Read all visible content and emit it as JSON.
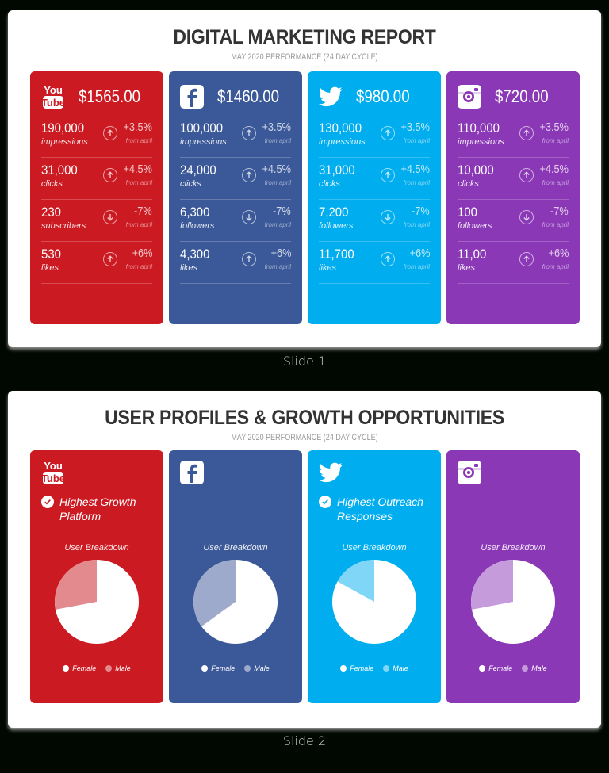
{
  "slide1": {
    "title": "DIGITAL MARKETING REPORT",
    "subtitle": "MAY 2020 PERFORMANCE (24 DAY CYCLE)",
    "caption": "Slide 1",
    "cards": [
      {
        "platform": "YouTube",
        "icon": "youtube-icon",
        "color": "#cc1a22",
        "amount": "$1565.00",
        "rows": [
          {
            "value": "190,000",
            "label": "impressions",
            "trend": "up",
            "change": "+3.5%",
            "note": "from april"
          },
          {
            "value": "31,000",
            "label": "clicks",
            "trend": "up",
            "change": "+4.5%",
            "note": "from april"
          },
          {
            "value": "230",
            "label": "subscribers",
            "trend": "down",
            "change": "-7%",
            "note": "from april"
          },
          {
            "value": "530",
            "label": "likes",
            "trend": "up",
            "change": "+6%",
            "note": "from april"
          }
        ]
      },
      {
        "platform": "Facebook",
        "icon": "facebook-icon",
        "color": "#3b5998",
        "amount": "$1460.00",
        "rows": [
          {
            "value": "100,000",
            "label": "impressions",
            "trend": "up",
            "change": "+3.5%",
            "note": "from april"
          },
          {
            "value": "24,000",
            "label": "clicks",
            "trend": "up",
            "change": "+4.5%",
            "note": "from april"
          },
          {
            "value": "6,300",
            "label": "followers",
            "trend": "down",
            "change": "-7%",
            "note": "from april"
          },
          {
            "value": "4,300",
            "label": "likes",
            "trend": "up",
            "change": "+6%",
            "note": "from april"
          }
        ]
      },
      {
        "platform": "Twitter",
        "icon": "twitter-icon",
        "color": "#00adee",
        "amount": "$980.00",
        "rows": [
          {
            "value": "130,000",
            "label": "impressions",
            "trend": "up",
            "change": "+3.5%",
            "note": "from april"
          },
          {
            "value": "31,000",
            "label": "clicks",
            "trend": "up",
            "change": "+4.5%",
            "note": "from april"
          },
          {
            "value": "7,200",
            "label": "followers",
            "trend": "down",
            "change": "-7%",
            "note": "from april"
          },
          {
            "value": "11,700",
            "label": "likes",
            "trend": "up",
            "change": "+6%",
            "note": "from april"
          }
        ]
      },
      {
        "platform": "Instagram",
        "icon": "instagram-icon",
        "color": "#8a38b6",
        "amount": "$720.00",
        "rows": [
          {
            "value": "110,000",
            "label": "impressions",
            "trend": "up",
            "change": "+3.5%",
            "note": "from april"
          },
          {
            "value": "10,000",
            "label": "clicks",
            "trend": "up",
            "change": "+4.5%",
            "note": "from april"
          },
          {
            "value": "100",
            "label": "followers",
            "trend": "down",
            "change": "-7%",
            "note": "from april"
          },
          {
            "value": "11,00",
            "label": "likes",
            "trend": "up",
            "change": "+6%",
            "note": "from april"
          }
        ]
      }
    ]
  },
  "slide2": {
    "title": "USER PROFILES & GROWTH OPPORTUNITIES",
    "subtitle": "MAY 2020 PERFORMANCE (24 DAY CYCLE)",
    "caption": "Slide 2",
    "breakdown_label": "User Breakdown",
    "legend": {
      "female": "Female",
      "male": "Male"
    },
    "cards": [
      {
        "platform": "YouTube",
        "icon": "youtube-icon",
        "color": "#cc1a22",
        "male_color": "#e38a8e",
        "badge": "Highest Growth Platform"
      },
      {
        "platform": "Facebook",
        "icon": "facebook-icon",
        "color": "#3b5998",
        "male_color": "#9eaacb",
        "badge": null
      },
      {
        "platform": "Twitter",
        "icon": "twitter-icon",
        "color": "#00adee",
        "male_color": "#80d6f7",
        "badge": "Highest Outreach Responses"
      },
      {
        "platform": "Instagram",
        "icon": "instagram-icon",
        "color": "#8a38b6",
        "male_color": "#c59bdc",
        "badge": null
      }
    ]
  },
  "chart_data": [
    {
      "type": "pie",
      "title": "YouTube - User Breakdown",
      "categories": [
        "Female",
        "Male"
      ],
      "values": [
        72,
        28
      ]
    },
    {
      "type": "pie",
      "title": "Facebook - User Breakdown",
      "categories": [
        "Female",
        "Male"
      ],
      "values": [
        65,
        35
      ]
    },
    {
      "type": "pie",
      "title": "Twitter - User Breakdown",
      "categories": [
        "Female",
        "Male"
      ],
      "values": [
        83,
        17
      ]
    },
    {
      "type": "pie",
      "title": "Instagram - User Breakdown",
      "categories": [
        "Female",
        "Male"
      ],
      "values": [
        72,
        28
      ]
    }
  ]
}
